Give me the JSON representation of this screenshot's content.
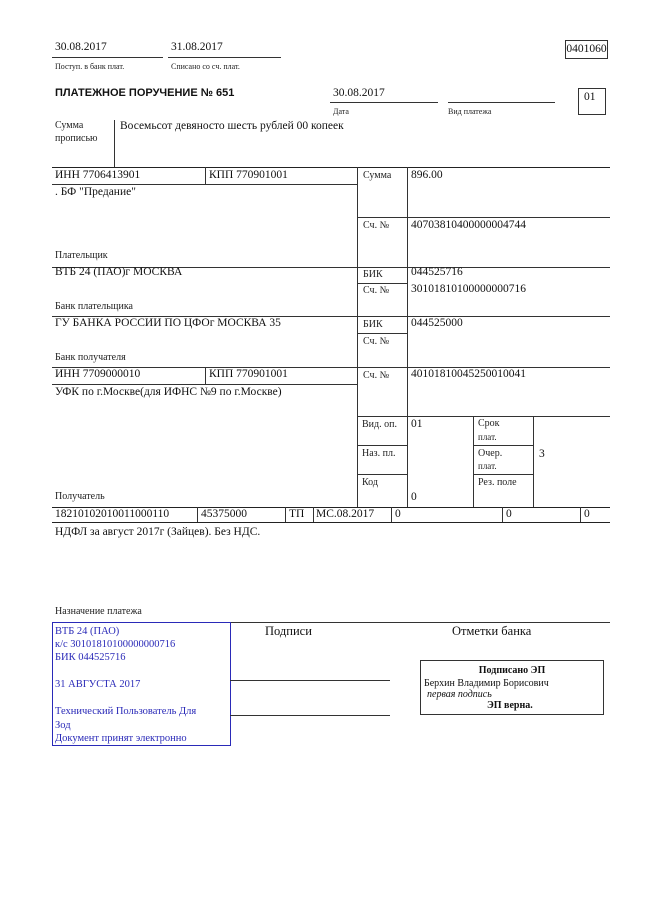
{
  "header": {
    "received_date": "30.08.2017",
    "received_label": "Поступ. в банк плат.",
    "debited_date": "31.08.2017",
    "debited_label": "Списано со сч. плат.",
    "form_code": "0401060",
    "title": "ПЛАТЕЖНОЕ ПОРУЧЕНИЕ № 651",
    "date": "30.08.2017",
    "date_label": "Дата",
    "payment_type_label": "Вид платежа",
    "payment_type": "",
    "status_code": "01"
  },
  "amount_words": {
    "label_1": "Сумма",
    "label_2": "прописью",
    "value": "Восемьсот девяносто шесть рублей 00 копеек"
  },
  "payer": {
    "inn": "ИНН 7706413901",
    "kpp": "КПП 770901001",
    "name": ". БФ \"Предание\"",
    "label": "Плательщик",
    "sum_label": "Сумма",
    "sum": "896.00",
    "account_label": "Сч. №",
    "account": "40703810400000004744"
  },
  "payer_bank": {
    "name": "ВТБ 24 (ПАО)г МОСКВА",
    "label": "Банк плательщика",
    "bik_label": "БИК",
    "bik": "044525716",
    "account_label": "Сч. №",
    "account": "30101810100000000716"
  },
  "recipient_bank": {
    "name": "ГУ БАНКА РОССИИ ПО ЦФОг МОСКВА 35",
    "label": "Банк получателя",
    "bik_label": "БИК",
    "bik": "044525000",
    "account_label": "Сч. №",
    "account": ""
  },
  "recipient": {
    "inn": "ИНН 7709000010",
    "kpp": "КПП 770901001",
    "name": "УФК по г.Москве(для ИФНС №9 по г.Москве)",
    "label": "Получатель",
    "account_label": "Сч. №",
    "account": "40101810045250010041"
  },
  "codes": {
    "op_type_label": "Вид. оп.",
    "op_type": "01",
    "purpose_label": "Наз. пл.",
    "code_label": "Код",
    "code": "0",
    "term_label_1": "Срок",
    "term_label_2": "плат.",
    "order_label_1": "Очер.",
    "order_label_2": "плат.",
    "order": "3",
    "reserve_label": "Рез. поле"
  },
  "tax_row": [
    "18210102010011000110",
    "45375000",
    "ТП",
    "МС.08.2017",
    "0",
    "0",
    "0"
  ],
  "purpose": {
    "text": "НДФЛ за август 2017г (Зайцев). Без НДС.",
    "label": "Назначение платежа"
  },
  "bank_stamp": {
    "lines": [
      "ВТБ 24 (ПАО)",
      "к/с 30101810100000000716",
      "БИК 044525716",
      "31 АВГУСТА 2017",
      "Технический Пользователь Для",
      "Зод",
      "Документ принят электронно"
    ],
    "color": "#2a2ab8"
  },
  "signatures_label": "Подписи",
  "bank_marks_label": "Отметки банка",
  "e_signature": {
    "title": "Подписано ЭП",
    "signer": "Берхин Владимир Борисович",
    "role": "первая подпись",
    "status": "ЭП верна."
  }
}
